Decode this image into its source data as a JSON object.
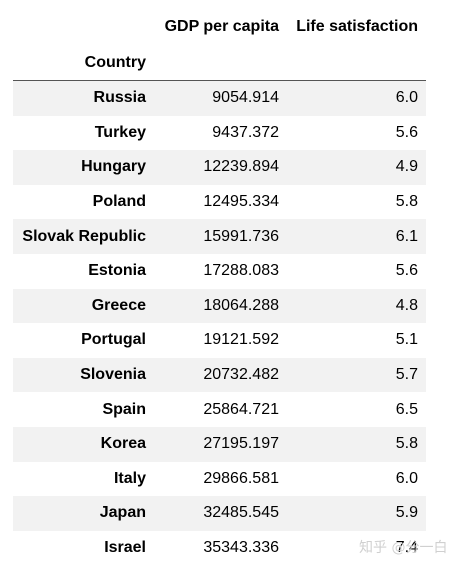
{
  "table": {
    "headers": {
      "gdp": "GDP per capita",
      "life": "Life satisfaction",
      "index": "Country"
    },
    "rows": [
      {
        "country": "Russia",
        "gdp": "9054.914",
        "life": "6.0"
      },
      {
        "country": "Turkey",
        "gdp": "9437.372",
        "life": "5.6"
      },
      {
        "country": "Hungary",
        "gdp": "12239.894",
        "life": "4.9"
      },
      {
        "country": "Poland",
        "gdp": "12495.334",
        "life": "5.8"
      },
      {
        "country": "Slovak Republic",
        "gdp": "15991.736",
        "life": "6.1"
      },
      {
        "country": "Estonia",
        "gdp": "17288.083",
        "life": "5.6"
      },
      {
        "country": "Greece",
        "gdp": "18064.288",
        "life": "4.8"
      },
      {
        "country": "Portugal",
        "gdp": "19121.592",
        "life": "5.1"
      },
      {
        "country": "Slovenia",
        "gdp": "20732.482",
        "life": "5.7"
      },
      {
        "country": "Spain",
        "gdp": "25864.721",
        "life": "6.5"
      },
      {
        "country": "Korea",
        "gdp": "27195.197",
        "life": "5.8"
      },
      {
        "country": "Italy",
        "gdp": "29866.581",
        "life": "6.0"
      },
      {
        "country": "Japan",
        "gdp": "32485.545",
        "life": "5.9"
      },
      {
        "country": "Israel",
        "gdp": "35343.336",
        "life": "7.4"
      }
    ]
  },
  "watermark": "知乎 @分一白"
}
